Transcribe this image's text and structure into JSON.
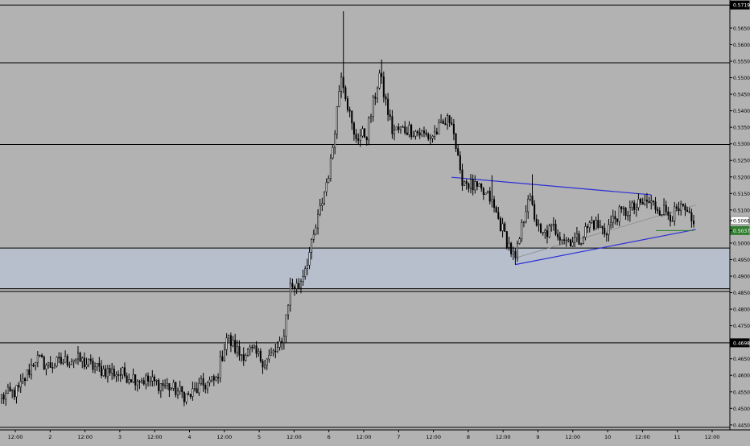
{
  "chart_data": {
    "type": "candlestick",
    "title": "",
    "xlabel": "",
    "ylabel": "",
    "ylim": [
      0.4435,
      0.5735
    ],
    "grid": false,
    "x_tick_labels": [
      "12:00",
      "2",
      "12:00",
      "3",
      "12:00",
      "4",
      "12:00",
      "5",
      "12:00",
      "6",
      "12:00",
      "7",
      "12:00",
      "8",
      "12:00",
      "9",
      "12:00",
      "10",
      "12:00",
      "11",
      "12:00"
    ],
    "y_tick_labels": [
      "0.57199",
      "0.56500",
      "0.56000",
      "0.55500",
      "0.55000",
      "0.54500",
      "0.54000",
      "0.53500",
      "0.53000",
      "0.52500",
      "0.52000",
      "0.51500",
      "0.51000",
      "0.50684",
      "0.50379",
      "0.50000",
      "0.49500",
      "0.49000",
      "0.48500",
      "0.48000",
      "0.47500",
      "0.46983",
      "0.46500",
      "0.46000",
      "0.45500",
      "0.45000",
      "0.44500"
    ],
    "colors": {
      "background": "#b2b2b2",
      "zone_fill": "#b7bfcc",
      "candle": "#000000",
      "trendline": "#2b2fd6",
      "midline": "#8a8a8a",
      "current_price_line": "#2e7d2e",
      "current_price_badge": "#2e7d2e",
      "level_badge": "#000000"
    },
    "horizontal_levels": [
      0.57199,
      0.5545,
      0.5298,
      0.4985,
      0.4862,
      0.48535,
      0.46983,
      0.4443
    ],
    "zone": {
      "top": 0.4985,
      "bottom": 0.4862
    },
    "current_price": 0.50379,
    "highlighted_levels": [
      {
        "value": 0.57199,
        "label": "0.57199",
        "badge": "black"
      },
      {
        "value": 0.50684,
        "label": "0.50684",
        "badge": "white"
      },
      {
        "value": 0.50379,
        "label": "0.50379",
        "badge": "green"
      },
      {
        "value": 0.46983,
        "label": "0.46983",
        "badge": "black"
      }
    ],
    "trendlines": [
      {
        "name": "upper",
        "from": {
          "bar": 212,
          "price": 0.5199
        },
        "to": {
          "bar": 306,
          "price": 0.5146
        }
      },
      {
        "name": "lower",
        "from": {
          "bar": 242,
          "price": 0.4935
        },
        "to": {
          "bar": 327,
          "price": 0.5041
        }
      },
      {
        "name": "mid",
        "from": {
          "bar": 242,
          "price": 0.4955
        },
        "to": {
          "bar": 327,
          "price": 0.5115
        }
      }
    ],
    "anchor_path": [
      [
        0,
        0.4534
      ],
      [
        8,
        0.4555
      ],
      [
        16,
        0.4652
      ],
      [
        22,
        0.4628
      ],
      [
        34,
        0.4652
      ],
      [
        46,
        0.4618
      ],
      [
        56,
        0.4605
      ],
      [
        66,
        0.4588
      ],
      [
        78,
        0.4568
      ],
      [
        88,
        0.4535
      ],
      [
        94,
        0.4568
      ],
      [
        101,
        0.4585
      ],
      [
        106,
        0.4715
      ],
      [
        112,
        0.4665
      ],
      [
        118,
        0.4672
      ],
      [
        124,
        0.4642
      ],
      [
        132,
        0.469
      ],
      [
        136,
        0.487
      ],
      [
        140,
        0.487
      ],
      [
        146,
        0.499
      ],
      [
        150,
        0.51
      ],
      [
        155,
        0.524
      ],
      [
        160,
        0.552
      ],
      [
        166,
        0.532
      ],
      [
        172,
        0.533
      ],
      [
        178,
        0.551
      ],
      [
        184,
        0.534
      ],
      [
        192,
        0.5345
      ],
      [
        202,
        0.532
      ],
      [
        212,
        0.538
      ],
      [
        216,
        0.52
      ],
      [
        222,
        0.517
      ],
      [
        230,
        0.5135
      ],
      [
        236,
        0.504
      ],
      [
        242,
        0.4945
      ],
      [
        248,
        0.5145
      ],
      [
        254,
        0.502
      ],
      [
        260,
        0.5045
      ],
      [
        266,
        0.501
      ],
      [
        272,
        0.501
      ],
      [
        278,
        0.5065
      ],
      [
        284,
        0.5035
      ],
      [
        290,
        0.5085
      ],
      [
        298,
        0.5105
      ],
      [
        304,
        0.5125
      ],
      [
        310,
        0.5105
      ],
      [
        316,
        0.5085
      ],
      [
        321,
        0.51
      ],
      [
        326,
        0.505
      ]
    ],
    "spikes": [
      {
        "bar": 161,
        "high": 0.5701
      },
      {
        "bar": 179,
        "high": 0.5555
      },
      {
        "bar": 231,
        "high": 0.5205
      },
      {
        "bar": 250,
        "high": 0.5208
      }
    ],
    "bar_count": 327
  }
}
